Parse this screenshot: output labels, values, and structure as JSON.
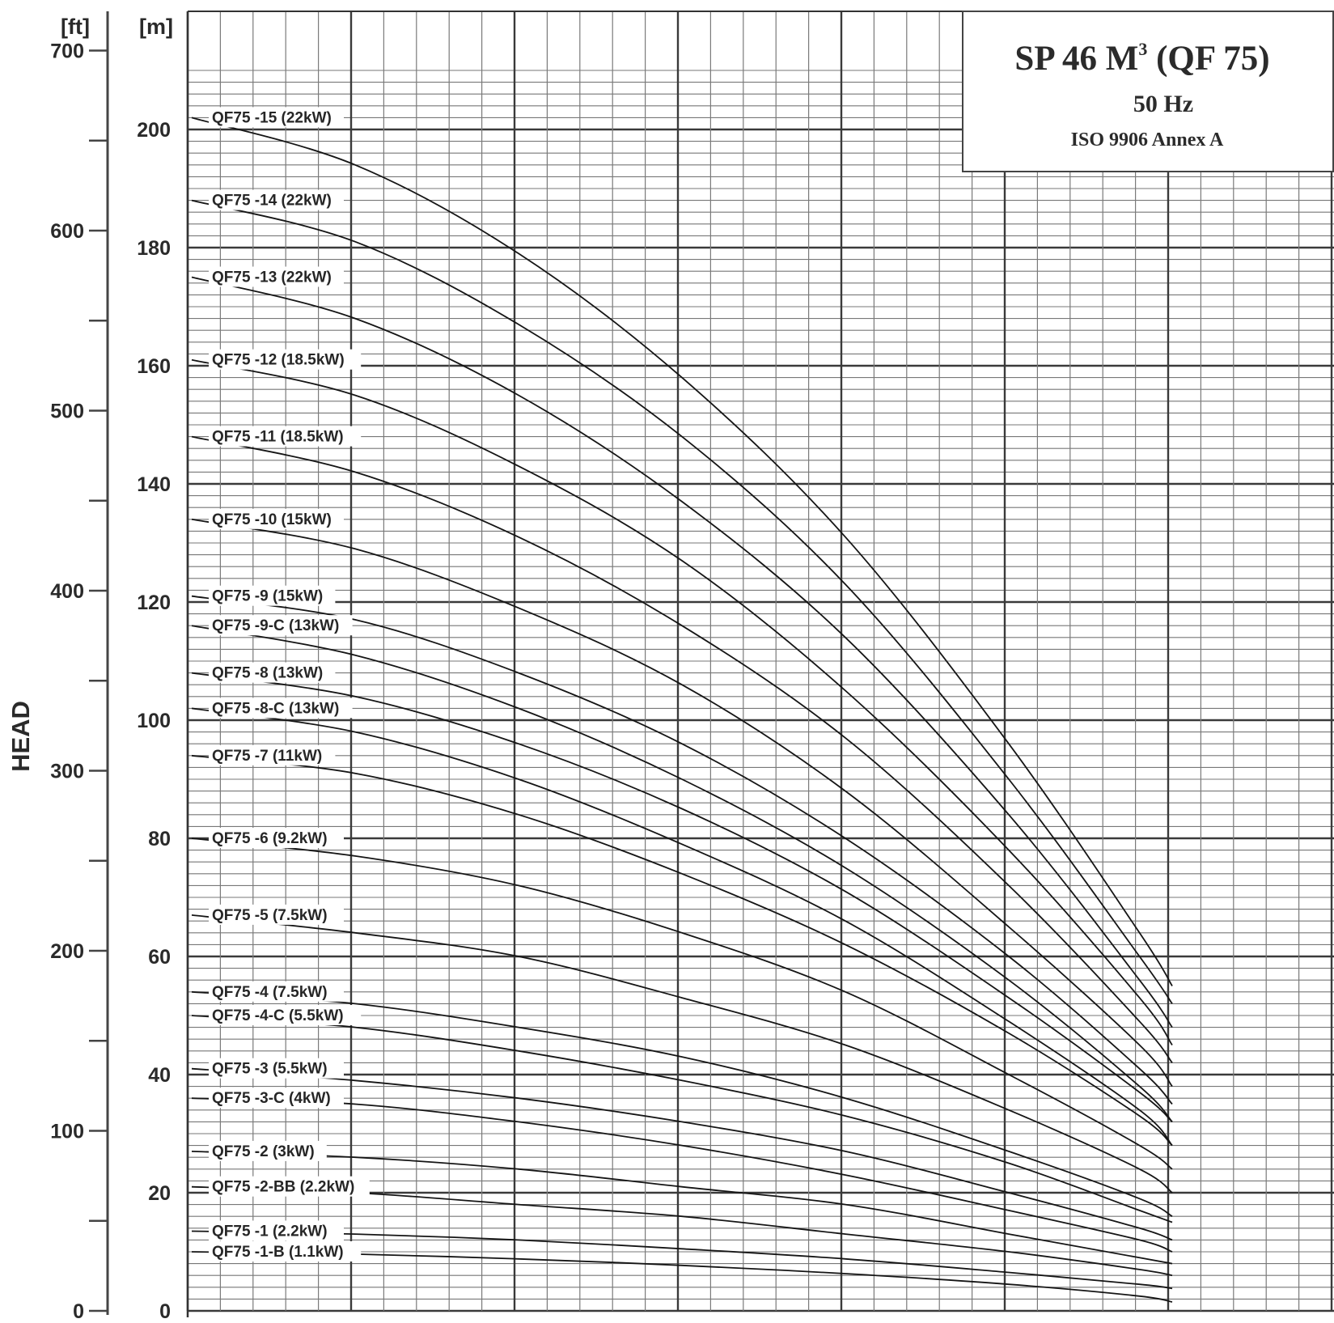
{
  "chart_data": {
    "type": "line",
    "title": "SP 46 M",
    "title_superscript": "3",
    "title_suffix": " (QF 75)",
    "subtitle": "50 Hz",
    "standard": "ISO 9906 Annex A",
    "ylabel": "HEAD",
    "y_unit_left": "[ft]",
    "y_unit_right": "[m]",
    "ylim_m": [
      0,
      200
    ],
    "yticks_m": [
      0,
      20,
      40,
      60,
      80,
      100,
      120,
      140,
      160,
      180,
      200
    ],
    "yticks_ft": [
      0,
      100,
      200,
      300,
      400,
      500,
      600,
      700
    ],
    "x_range": [
      0,
      6
    ],
    "grid": true,
    "series": [
      {
        "name": "QF75 -15 (22kW)",
        "x": [
          0,
          1,
          2,
          3,
          4,
          5,
          5.8,
          6
        ],
        "values": [
          202,
          194,
          179,
          158,
          131,
          96,
          64,
          55
        ]
      },
      {
        "name": "QF75 -14 (22kW)",
        "x": [
          0,
          1,
          2,
          3,
          4,
          5,
          5.8,
          6
        ],
        "values": [
          188,
          181,
          167,
          148,
          123,
          90,
          60,
          52
        ]
      },
      {
        "name": "QF75 -13 (22kW)",
        "x": [
          0,
          1,
          2,
          3,
          4,
          5,
          5.8,
          6
        ],
        "values": [
          175,
          168,
          155,
          137,
          114,
          84,
          56,
          48
        ]
      },
      {
        "name": "QF75 -12 (18.5kW)",
        "x": [
          0,
          1,
          2,
          3,
          4,
          5,
          5.8,
          6
        ],
        "values": [
          161,
          155,
          143,
          127,
          105,
          78,
          53,
          45
        ]
      },
      {
        "name": "QF75 -11 (18.5kW)",
        "x": [
          0,
          1,
          2,
          3,
          4,
          5,
          5.8,
          6
        ],
        "values": [
          148,
          142,
          131,
          116,
          97,
          72,
          49,
          42
        ]
      },
      {
        "name": "QF75 -10 (15kW)",
        "x": [
          0,
          1,
          2,
          3,
          4,
          5,
          5.8,
          6
        ],
        "values": [
          134,
          129,
          119,
          106,
          88,
          65,
          45,
          38
        ]
      },
      {
        "name": "QF75 -9 (15kW)",
        "x": [
          0,
          1,
          2,
          3,
          4,
          5,
          5.8,
          6
        ],
        "values": [
          121,
          117,
          108,
          96,
          80,
          60,
          41,
          35
        ]
      },
      {
        "name": "QF75 -9-C (13kW)",
        "x": [
          0,
          1,
          2,
          3,
          4,
          5,
          5.8,
          6
        ],
        "values": [
          116,
          111,
          102,
          90,
          75,
          56,
          38,
          32
        ]
      },
      {
        "name": "QF75 -8 (13kW)",
        "x": [
          0,
          1,
          2,
          3,
          4,
          5,
          5.8,
          6
        ],
        "values": [
          108,
          104,
          96,
          85,
          71,
          53,
          37,
          32
        ]
      },
      {
        "name": "QF75 -8-C (13kW)",
        "x": [
          0,
          1,
          2,
          3,
          4,
          5,
          5.8,
          6
        ],
        "values": [
          102,
          98,
          90,
          79,
          66,
          49,
          34,
          28
        ]
      },
      {
        "name": "QF75 -7 (11kW)",
        "x": [
          0,
          1,
          2,
          3,
          4,
          5,
          5.8,
          6
        ],
        "values": [
          94,
          91,
          84,
          74,
          62,
          47,
          33,
          28
        ]
      },
      {
        "name": "QF75 -6 (9.2kW)",
        "x": [
          0,
          1,
          2,
          3,
          4,
          5,
          5.8,
          6
        ],
        "values": [
          80,
          77,
          72,
          64,
          54,
          40,
          28,
          24
        ]
      },
      {
        "name": "QF75 -5 (7.5kW)",
        "x": [
          0,
          1,
          2,
          3,
          4,
          5,
          5.8,
          6
        ],
        "values": [
          67,
          64,
          60,
          53,
          45,
          34,
          24,
          20
        ]
      },
      {
        "name": "QF75 -4 (7.5kW)",
        "x": [
          0,
          1,
          2,
          3,
          4,
          5,
          5.8,
          6
        ],
        "values": [
          54,
          52,
          48,
          43,
          36,
          27,
          19,
          16
        ]
      },
      {
        "name": "QF75 -4-C (5.5kW)",
        "x": [
          0,
          1,
          2,
          3,
          4,
          5,
          5.8,
          6
        ],
        "values": [
          50,
          48,
          44,
          39,
          33,
          25,
          17,
          15
        ]
      },
      {
        "name": "QF75 -3 (5.5kW)",
        "x": [
          0,
          1,
          2,
          3,
          4,
          5,
          5.8,
          6
        ],
        "values": [
          41,
          39,
          36,
          32,
          27,
          20,
          14,
          12
        ]
      },
      {
        "name": "QF75 -3-C (4kW)",
        "x": [
          0,
          1,
          2,
          3,
          4,
          5,
          5.8,
          6
        ],
        "values": [
          36,
          35,
          32,
          28,
          23,
          17,
          12,
          10
        ]
      },
      {
        "name": "QF75 -2 (3kW)",
        "x": [
          0,
          1,
          2,
          3,
          4,
          5,
          5.8,
          6
        ],
        "values": [
          27,
          26,
          24,
          21,
          18,
          13,
          9,
          8
        ]
      },
      {
        "name": "QF75 -2-BB (2.2kW)",
        "x": [
          0,
          1,
          2,
          3,
          4,
          5,
          5.8,
          6
        ],
        "values": [
          21,
          20,
          18,
          16,
          13,
          10,
          7,
          6
        ]
      },
      {
        "name": "QF75 -1 (2.2kW)",
        "x": [
          0,
          1,
          2,
          3,
          4,
          5,
          5.8,
          6
        ],
        "values": [
          13.5,
          13,
          12,
          10.5,
          8.8,
          6.5,
          4.5,
          3.8
        ]
      },
      {
        "name": "QF75 -1-B (1.1kW)",
        "x": [
          0,
          1,
          2,
          3,
          4,
          5,
          5.8,
          6
        ],
        "values": [
          10,
          9.6,
          8.8,
          7.7,
          6.3,
          4.5,
          2.5,
          1.5
        ]
      }
    ]
  }
}
